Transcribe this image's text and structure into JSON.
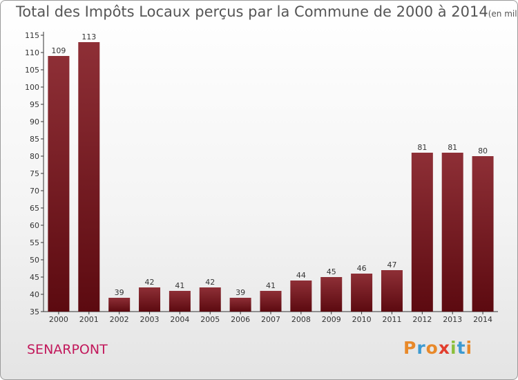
{
  "chart_data": {
    "type": "bar",
    "title": "Total des Impôts Locaux perçus par la Commune de 2000 à 2014",
    "unit": "(en milliers d'€)",
    "categories": [
      "2000",
      "2001",
      "2002",
      "2003",
      "2004",
      "2005",
      "2006",
      "2007",
      "2008",
      "2009",
      "2010",
      "2011",
      "2012",
      "2013",
      "2014"
    ],
    "values": [
      109,
      113,
      39,
      42,
      41,
      42,
      39,
      41,
      44,
      45,
      46,
      47,
      81,
      81,
      80
    ],
    "ylim": [
      35,
      115
    ],
    "yticks": [
      35,
      40,
      45,
      50,
      55,
      60,
      65,
      70,
      75,
      80,
      85,
      90,
      95,
      100,
      105,
      110,
      115
    ],
    "xlabel": "",
    "ylabel": "",
    "grid": false,
    "bar_color": "#7a1b23"
  },
  "commune": "SENARPONT",
  "logo": {
    "letters": [
      "P",
      "r",
      "o",
      "x",
      "i",
      "t",
      "i"
    ],
    "colors": [
      "#e8892a",
      "#3d9ad1",
      "#e8892a",
      "#e23e2d",
      "#8bbf3b",
      "#3d9ad1",
      "#e8892a"
    ]
  }
}
